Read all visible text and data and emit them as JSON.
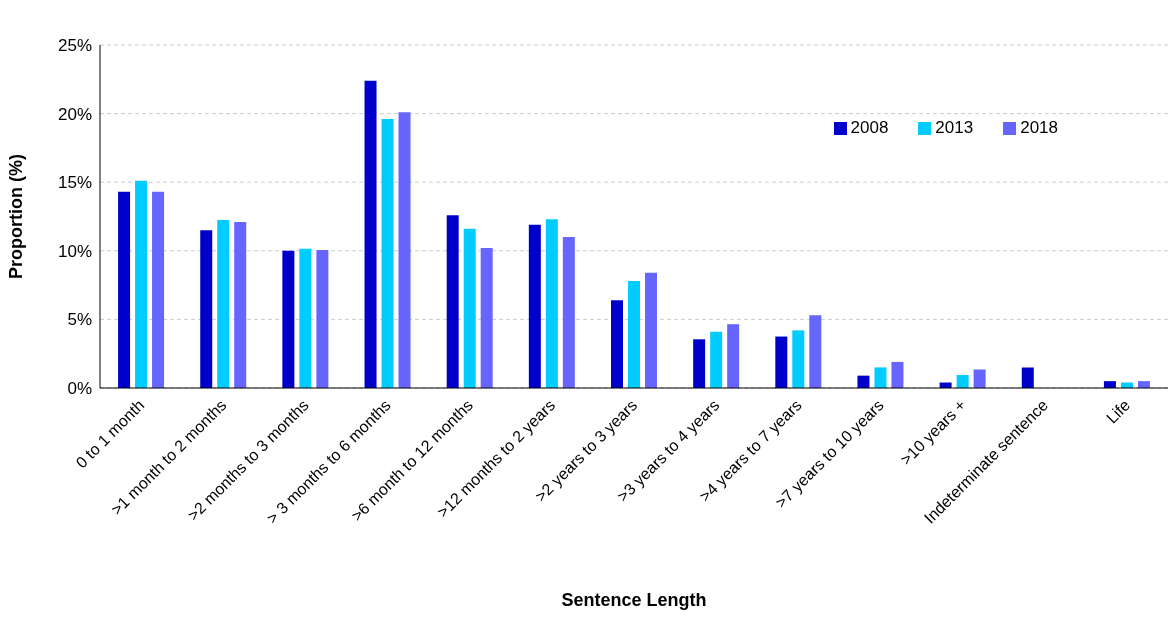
{
  "chart_data": {
    "type": "bar",
    "xlabel": "Sentence Length",
    "ylabel": "Proportion (%)",
    "categories": [
      "0 to 1 month",
      ">1 month to 2 months",
      ">2 months to 3 months",
      "> 3 months to 6 months",
      ">6 month to 12 months",
      ">12 months to 2 years",
      ">2 years to 3 years",
      ">3 years to 4 years",
      ">4 years to 7 years",
      ">7 years to 10 years",
      ">10 years +",
      "Indeterminate sentence",
      "Life"
    ],
    "series": [
      {
        "name": "2008",
        "color": "#0000cc",
        "values": [
          14.3,
          11.5,
          10.0,
          22.4,
          12.6,
          11.9,
          6.4,
          3.55,
          3.75,
          0.9,
          0.4,
          1.5,
          0.5
        ]
      },
      {
        "name": "2013",
        "color": "#00ccff",
        "values": [
          15.1,
          12.25,
          10.15,
          19.6,
          11.6,
          12.3,
          7.8,
          4.1,
          4.2,
          1.5,
          0.95,
          0,
          0.4
        ]
      },
      {
        "name": "2018",
        "color": "#6666ff",
        "values": [
          14.3,
          12.1,
          10.05,
          20.1,
          10.2,
          11.0,
          8.4,
          4.65,
          5.3,
          1.9,
          1.35,
          0,
          0.5
        ]
      }
    ],
    "ylim": [
      0,
      25
    ],
    "yticks": [
      {
        "value": 0,
        "label": "0%"
      },
      {
        "value": 5,
        "label": "5%"
      },
      {
        "value": 10,
        "label": "10%"
      },
      {
        "value": 15,
        "label": "15%"
      },
      {
        "value": 20,
        "label": "20%"
      },
      {
        "value": 25,
        "label": "25%"
      }
    ],
    "grid": "y",
    "legend": "top right"
  }
}
